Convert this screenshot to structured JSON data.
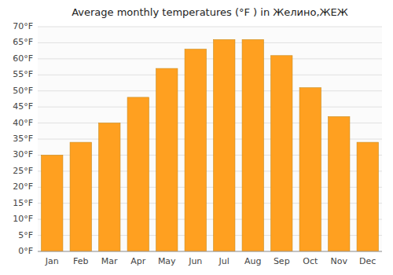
{
  "chart_data": {
    "type": "bar",
    "title": "Average monthly temperatures (°F ) in Желино,ЖЕЖ",
    "categories": [
      "Jan",
      "Feb",
      "Mar",
      "Apr",
      "May",
      "Jun",
      "Jul",
      "Aug",
      "Sep",
      "Oct",
      "Nov",
      "Dec"
    ],
    "values": [
      30,
      34,
      40,
      48,
      57,
      63,
      66,
      66,
      61,
      51,
      42,
      34
    ],
    "color": "#FFA020",
    "ylim": [
      0,
      70
    ],
    "yticks": [
      {
        "value": 0,
        "label": "0°F"
      },
      {
        "value": 5,
        "label": "5°F"
      },
      {
        "value": 10,
        "label": "10°F"
      },
      {
        "value": 15,
        "label": "15°F"
      },
      {
        "value": 20,
        "label": "20°F"
      },
      {
        "value": 25,
        "label": "25°F"
      },
      {
        "value": 30,
        "label": "30°F"
      },
      {
        "value": 35,
        "label": "35°F"
      },
      {
        "value": 40,
        "label": "40°F"
      },
      {
        "value": 45,
        "label": "45°F"
      },
      {
        "value": 50,
        "label": "50°F"
      },
      {
        "value": 55,
        "label": "55°F"
      },
      {
        "value": 60,
        "label": "60°F"
      },
      {
        "value": 65,
        "label": "65°F"
      },
      {
        "value": 70,
        "label": "70°F"
      }
    ],
    "grid": true
  }
}
